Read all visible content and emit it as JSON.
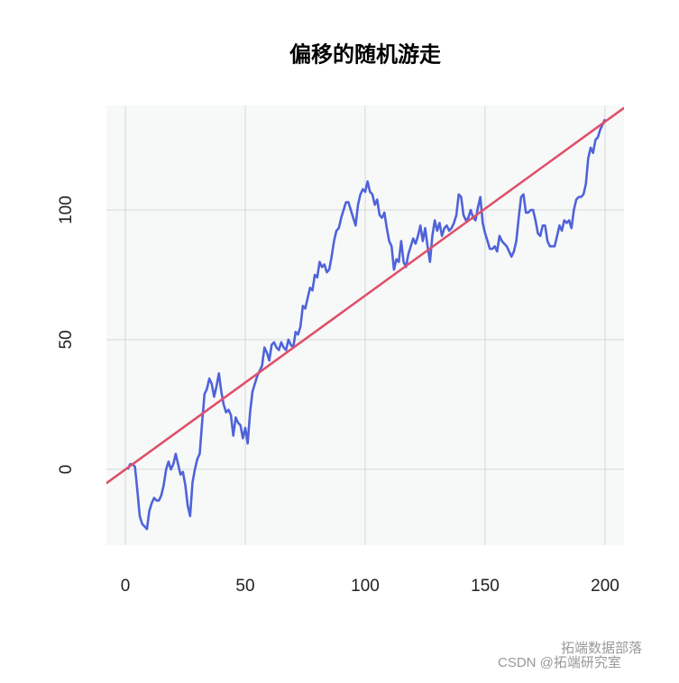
{
  "chart_data": {
    "type": "line",
    "title": "偏移的随机游走",
    "xlim": [
      -7.9,
      207.9
    ],
    "ylim": [
      -29.2,
      140.3
    ],
    "xticks": [
      0,
      50,
      100,
      150,
      200
    ],
    "yticks": [
      0,
      50,
      100
    ],
    "grid": true,
    "series": [
      {
        "color": "#4f63d9",
        "x": [
          1,
          2,
          3,
          4,
          5,
          6,
          7,
          8,
          9,
          10,
          11,
          12,
          13,
          14,
          15,
          16,
          17,
          18,
          19,
          20,
          21,
          22,
          23,
          24,
          25,
          26,
          27,
          28,
          29,
          30,
          31,
          32,
          33,
          34,
          35,
          36,
          37,
          38,
          39,
          40,
          41,
          42,
          43,
          44,
          45,
          46,
          47,
          48,
          49,
          50,
          51,
          52,
          53,
          54,
          55,
          56,
          57,
          58,
          59,
          60,
          61,
          62,
          63,
          64,
          65,
          66,
          67,
          68,
          69,
          70,
          71,
          72,
          73,
          74,
          75,
          76,
          77,
          78,
          79,
          80,
          81,
          82,
          83,
          84,
          85,
          86,
          87,
          88,
          89,
          90,
          91,
          92,
          93,
          94,
          95,
          96,
          97,
          98,
          99,
          100,
          101,
          102,
          103,
          104,
          105,
          106,
          107,
          108,
          109,
          110,
          111,
          112,
          113,
          114,
          115,
          116,
          117,
          118,
          119,
          120,
          121,
          122,
          123,
          124,
          125,
          126,
          127,
          128,
          129,
          130,
          131,
          132,
          133,
          134,
          135,
          136,
          137,
          138,
          139,
          140,
          141,
          142,
          143,
          144,
          145,
          146,
          147,
          148,
          149,
          150,
          151,
          152,
          153,
          154,
          155,
          156,
          157,
          158,
          159,
          160,
          161,
          162,
          163,
          164,
          165,
          166,
          167,
          168,
          169,
          170,
          171,
          172,
          173,
          174,
          175,
          176,
          177,
          178,
          179,
          180,
          181,
          182,
          183,
          184,
          185,
          186,
          187,
          188,
          189,
          190,
          191,
          192,
          193,
          194,
          195,
          196,
          197,
          198,
          199,
          200
        ],
        "values": [
          0,
          2,
          2,
          1,
          -8,
          -18,
          -21,
          -22,
          -23,
          -16,
          -13,
          -11,
          -12,
          -12,
          -10,
          -6,
          0,
          3,
          0,
          2,
          6,
          2,
          -2,
          -1,
          -6,
          -14,
          -18,
          -5,
          0,
          4,
          6,
          18,
          29,
          31,
          35,
          33,
          28,
          32,
          37,
          30,
          25,
          22,
          23,
          21,
          13,
          20,
          18,
          17,
          12,
          16,
          10,
          22,
          30,
          33,
          36,
          38,
          40,
          47,
          45,
          42,
          48,
          49,
          47,
          46,
          49,
          47,
          46,
          50,
          48,
          47,
          53,
          52,
          55,
          63,
          62,
          66,
          70,
          69,
          75,
          74,
          80,
          78,
          79,
          76,
          77,
          82,
          88,
          92,
          93,
          97,
          100,
          103,
          103,
          100,
          97,
          94,
          102,
          106,
          108,
          107,
          111,
          107,
          106,
          102,
          104,
          98,
          97,
          99,
          93,
          88,
          86,
          77,
          81,
          80,
          88,
          80,
          78,
          83,
          86,
          89,
          87,
          90,
          94,
          88,
          93,
          86,
          80,
          90,
          96,
          92,
          95,
          90,
          93,
          94,
          92,
          93,
          95,
          98,
          106,
          105,
          98,
          96,
          97,
          100,
          97,
          96,
          101,
          105,
          95,
          91,
          88,
          85,
          85,
          86,
          84,
          90,
          88,
          87,
          86,
          84,
          82,
          84,
          88,
          97,
          105,
          106,
          99,
          99,
          100,
          100,
          96,
          91,
          90,
          94,
          94,
          88,
          86,
          86,
          86,
          90,
          94,
          92,
          96,
          95,
          96,
          93,
          100,
          104,
          105,
          105,
          106,
          110,
          120,
          124,
          122,
          127,
          128,
          131,
          133,
          135
        ]
      },
      {
        "color": "#e0506a",
        "x": [
          -8,
          208
        ],
        "values": [
          -5.4,
          139.4
        ]
      }
    ],
    "watermark": [
      "拓端数据部落",
      "CSDN @拓端研究室"
    ]
  }
}
